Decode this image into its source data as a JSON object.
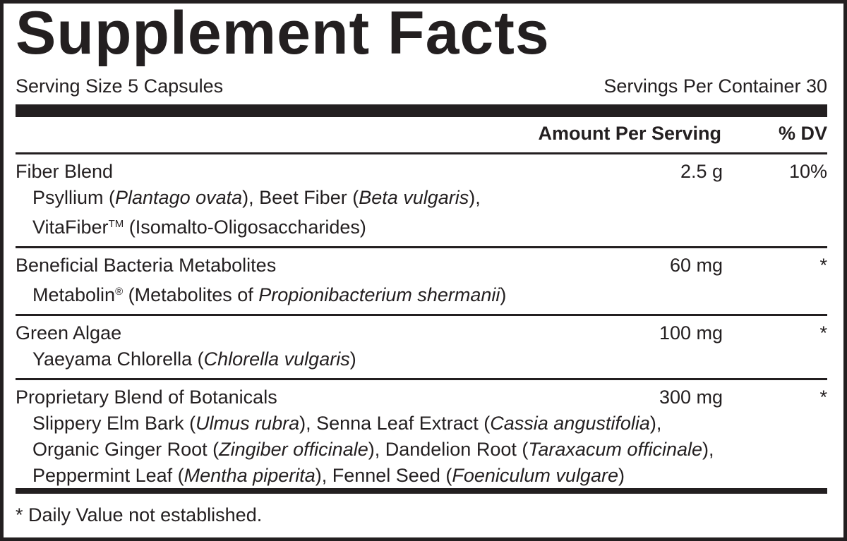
{
  "title": "Supplement Facts",
  "serving_size": "Serving Size 5 Capsules",
  "servings_per_container": "Servings Per Container 30",
  "header": {
    "amount": "Amount Per Serving",
    "dv": "% DV"
  },
  "rows": [
    {
      "name": "Fiber Blend",
      "amount": "2.5 g",
      "dv": "10%",
      "sub": [
        [
          {
            "t": "Psyllium ("
          },
          {
            "t": "Plantago ovata",
            "s": "it"
          },
          {
            "t": "), Beet Fiber ("
          },
          {
            "t": "Beta vulgaris",
            "s": "it"
          },
          {
            "t": "),"
          }
        ],
        [
          {
            "t": "VitaFiber"
          },
          {
            "t": "TM",
            "s": "sup"
          },
          {
            "t": " (Isomalto-Oligosaccharides)"
          }
        ]
      ]
    },
    {
      "name": "Beneficial Bacteria Metabolites",
      "amount": "60 mg",
      "dv": "*",
      "sub": [
        [
          {
            "t": "Metabolin"
          },
          {
            "t": "®",
            "s": "sup"
          },
          {
            "t": " (Metabolites of "
          },
          {
            "t": "Propionibacterium shermanii",
            "s": "it"
          },
          {
            "t": ")"
          }
        ]
      ]
    },
    {
      "name": "Green Algae",
      "amount": "100 mg",
      "dv": "*",
      "sub": [
        [
          {
            "t": "Yaeyama Chlorella ("
          },
          {
            "t": "Chlorella vulgaris",
            "s": "it"
          },
          {
            "t": ")"
          }
        ]
      ]
    },
    {
      "name": "Proprietary Blend of Botanicals",
      "amount": "300 mg",
      "dv": "*",
      "sub": [
        [
          {
            "t": "Slippery Elm Bark ("
          },
          {
            "t": "Ulmus rubra",
            "s": "it"
          },
          {
            "t": "), Senna Leaf Extract ("
          },
          {
            "t": "Cassia angustifolia",
            "s": "it"
          },
          {
            "t": "),"
          }
        ],
        [
          {
            "t": "Organic Ginger Root ("
          },
          {
            "t": "Zingiber officinale",
            "s": "it"
          },
          {
            "t": "), Dandelion Root ("
          },
          {
            "t": "Taraxacum officinale",
            "s": "it"
          },
          {
            "t": "),"
          }
        ],
        [
          {
            "t": "Peppermint Leaf ("
          },
          {
            "t": "Mentha piperita",
            "s": "it"
          },
          {
            "t": "), Fennel Seed ("
          },
          {
            "t": "Foeniculum vulgare",
            "s": "it"
          },
          {
            "t": ")"
          }
        ]
      ]
    }
  ],
  "footnote": "* Daily Value not established."
}
